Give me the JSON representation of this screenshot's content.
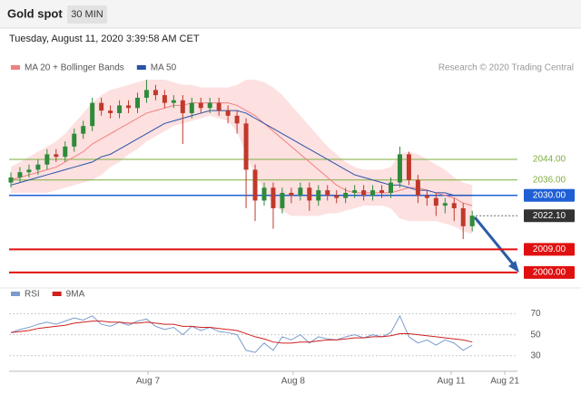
{
  "header": {
    "title": "Gold spot",
    "interval": "30 MIN"
  },
  "timestamp": "Tuesday, August 11, 2020 3:39:58 AM CET",
  "chart_data": [
    {
      "type": "candlestick",
      "credit": "Research © 2020 Trading Central",
      "up_color": "#2e8b3a",
      "down_color": "#c0392b",
      "x": [
        0,
        1,
        2,
        3,
        4,
        5,
        6,
        7,
        8,
        9,
        10,
        11,
        12,
        13,
        14,
        15,
        16,
        17,
        18,
        19,
        20,
        21,
        22,
        23,
        24,
        25,
        26,
        27,
        28,
        29,
        30,
        31,
        32,
        33,
        34,
        35,
        36,
        37,
        38,
        39,
        40,
        41,
        42,
        43,
        44,
        45,
        46,
        47,
        48,
        49,
        50,
        51
      ],
      "open": [
        2035,
        2037,
        2039,
        2040,
        2042,
        2046,
        2045,
        2049,
        2054,
        2057,
        2066,
        2063,
        2062,
        2065,
        2064,
        2068,
        2071,
        2069,
        2066,
        2067,
        2062,
        2066,
        2064,
        2066,
        2063,
        2061,
        2058,
        2040,
        2028,
        2033,
        2025,
        2031,
        2030,
        2033,
        2028,
        2032,
        2030,
        2029,
        2031,
        2032,
        2030,
        2032,
        2031,
        2035,
        2046,
        2036,
        2030,
        2029,
        2026,
        2027,
        2025,
        2018
      ],
      "high": [
        2039,
        2041,
        2042,
        2044,
        2048,
        2048,
        2051,
        2056,
        2059,
        2068,
        2068,
        2065,
        2067,
        2067,
        2070,
        2075,
        2073,
        2071,
        2069,
        2069,
        2068,
        2068,
        2068,
        2068,
        2065,
        2063,
        2060,
        2042,
        2035,
        2035,
        2033,
        2033,
        2035,
        2035,
        2034,
        2034,
        2032,
        2033,
        2034,
        2034,
        2034,
        2034,
        2037,
        2049,
        2047,
        2038,
        2032,
        2031,
        2029,
        2029,
        2027,
        2024
      ],
      "low": [
        2033,
        2035,
        2037,
        2038,
        2040,
        2043,
        2043,
        2047,
        2052,
        2055,
        2061,
        2060,
        2060,
        2062,
        2062,
        2066,
        2067,
        2064,
        2064,
        2050,
        2060,
        2062,
        2062,
        2061,
        2058,
        2054,
        2025,
        2020,
        2026,
        2017,
        2023,
        2027,
        2028,
        2024,
        2026,
        2028,
        2027,
        2027,
        2029,
        2028,
        2028,
        2029,
        2029,
        2033,
        2034,
        2027,
        2026,
        2022,
        2023,
        2020,
        2013,
        2016
      ],
      "close": [
        2037,
        2039,
        2040,
        2042,
        2046,
        2045,
        2049,
        2054,
        2057,
        2066,
        2063,
        2062,
        2065,
        2064,
        2068,
        2071,
        2069,
        2066,
        2067,
        2062,
        2066,
        2064,
        2066,
        2063,
        2061,
        2058,
        2040,
        2028,
        2033,
        2025,
        2031,
        2030,
        2033,
        2028,
        2032,
        2030,
        2029,
        2031,
        2032,
        2030,
        2032,
        2031,
        2035,
        2046,
        2036,
        2030,
        2029,
        2026,
        2027,
        2025,
        2018,
        2022.1
      ],
      "series": [
        {
          "name": "MA 20 + Bollinger Bands",
          "color": "#f08080",
          "band_color": "#fde0e0",
          "values": [
            2036,
            2037,
            2038,
            2039,
            2040,
            2041,
            2043,
            2045,
            2047,
            2050,
            2052,
            2054,
            2056,
            2058,
            2060,
            2062,
            2063,
            2064,
            2065,
            2065,
            2066,
            2066,
            2066,
            2066,
            2066,
            2065,
            2063,
            2061,
            2058,
            2055,
            2052,
            2049,
            2046,
            2043,
            2040,
            2037,
            2034,
            2032,
            2031,
            2031,
            2031,
            2031,
            2031,
            2032,
            2033,
            2033,
            2032,
            2031,
            2030,
            2029,
            2027,
            2026
          ],
          "upper": [
            2041,
            2043,
            2045,
            2047,
            2049,
            2051,
            2054,
            2058,
            2062,
            2066,
            2069,
            2071,
            2072,
            2073,
            2074,
            2075,
            2075,
            2075,
            2074,
            2073,
            2073,
            2072,
            2072,
            2072,
            2072,
            2073,
            2075,
            2075,
            2074,
            2072,
            2069,
            2065,
            2061,
            2057,
            2053,
            2049,
            2046,
            2043,
            2041,
            2040,
            2040,
            2040,
            2041,
            2046,
            2047,
            2046,
            2044,
            2042,
            2040,
            2037,
            2035,
            2034
          ],
          "lower": [
            2031,
            2031,
            2031,
            2031,
            2031,
            2032,
            2033,
            2034,
            2035,
            2036,
            2038,
            2041,
            2043,
            2046,
            2048,
            2051,
            2053,
            2055,
            2057,
            2058,
            2059,
            2060,
            2061,
            2060,
            2059,
            2055,
            2046,
            2038,
            2032,
            2026,
            2024,
            2022,
            2022,
            2022,
            2022,
            2023,
            2023,
            2024,
            2025,
            2026,
            2026,
            2026,
            2025,
            2021,
            2020,
            2020,
            2020,
            2020,
            2019,
            2018,
            2016,
            2015
          ]
        },
        {
          "name": "MA 50",
          "color": "#2a52a8",
          "values": [
            2034,
            2035,
            2036,
            2037,
            2038,
            2039,
            2040,
            2041,
            2042,
            2043,
            2045,
            2046,
            2048,
            2050,
            2052,
            2054,
            2056,
            2058,
            2059,
            2060,
            2061,
            2062,
            2063,
            2063,
            2063,
            2063,
            2062,
            2060,
            2058,
            2056,
            2054,
            2052,
            2050,
            2048,
            2046,
            2044,
            2042,
            2040,
            2038,
            2037,
            2036,
            2035,
            2034,
            2034,
            2033,
            2032,
            2032,
            2031,
            2031,
            2030,
            2030,
            2030
          ]
        }
      ],
      "levels": [
        {
          "value": 2044,
          "label": "2044.00",
          "color": "#7fae3f",
          "boxed": false,
          "width": 1
        },
        {
          "value": 2036,
          "label": "2036.00",
          "color": "#7fae3f",
          "boxed": false,
          "width": 1
        },
        {
          "value": 2030,
          "label": "2030.00",
          "color": "#1f5fd6",
          "boxed": true,
          "width": 1.5
        },
        {
          "value": 2022.1,
          "label": "2022.10",
          "color": "#333333",
          "boxed": true,
          "width": 1,
          "dotted": true
        },
        {
          "value": 2009,
          "label": "2009.00",
          "color": "#e01010",
          "boxed": true,
          "width": 2
        },
        {
          "value": 2000,
          "label": "2000.00",
          "color": "#e01010",
          "boxed": true,
          "width": 2
        }
      ],
      "xlim": [
        -0.2,
        56
      ],
      "ylim": [
        1996.8,
        2079.6
      ]
    },
    {
      "type": "line",
      "x": [
        0,
        1,
        2,
        3,
        4,
        5,
        6,
        7,
        8,
        9,
        10,
        11,
        12,
        13,
        14,
        15,
        16,
        17,
        18,
        19,
        20,
        21,
        22,
        23,
        24,
        25,
        26,
        27,
        28,
        29,
        30,
        31,
        32,
        33,
        34,
        35,
        36,
        37,
        38,
        39,
        40,
        41,
        42,
        43,
        44,
        45,
        46,
        47,
        48,
        49,
        50,
        51
      ],
      "series": [
        {
          "name": "RSI",
          "color": "#7a9ccc",
          "values": [
            52,
            55,
            57,
            60,
            62,
            60,
            63,
            66,
            64,
            68,
            60,
            58,
            62,
            59,
            63,
            65,
            58,
            55,
            57,
            50,
            58,
            54,
            57,
            53,
            52,
            50,
            35,
            33,
            42,
            35,
            48,
            45,
            50,
            42,
            48,
            46,
            45,
            48,
            50,
            47,
            50,
            48,
            52,
            68,
            48,
            42,
            45,
            40,
            45,
            42,
            35,
            40
          ]
        },
        {
          "name": "9MA",
          "color": "#d02020",
          "values": [
            52,
            53,
            54,
            56,
            57,
            58,
            59,
            61,
            62,
            63,
            63,
            62,
            62,
            61,
            61,
            62,
            61,
            60,
            60,
            58,
            58,
            57,
            57,
            56,
            55,
            54,
            51,
            48,
            46,
            43,
            42,
            42,
            43,
            43,
            44,
            45,
            45,
            46,
            47,
            47,
            48,
            48,
            49,
            51,
            51,
            50,
            49,
            48,
            47,
            46,
            45,
            43
          ]
        }
      ],
      "xlim": [
        -0.2,
        56
      ],
      "ylim": [
        15,
        80
      ],
      "yticks": [
        70,
        50,
        30
      ],
      "xticks": [
        {
          "value": 15.15,
          "label": "Aug 7"
        },
        {
          "value": 31.2,
          "label": "Aug 8"
        },
        {
          "value": 48.67,
          "label": "Aug 11"
        },
        {
          "value": 54.6,
          "label": "Aug 21"
        }
      ]
    }
  ]
}
